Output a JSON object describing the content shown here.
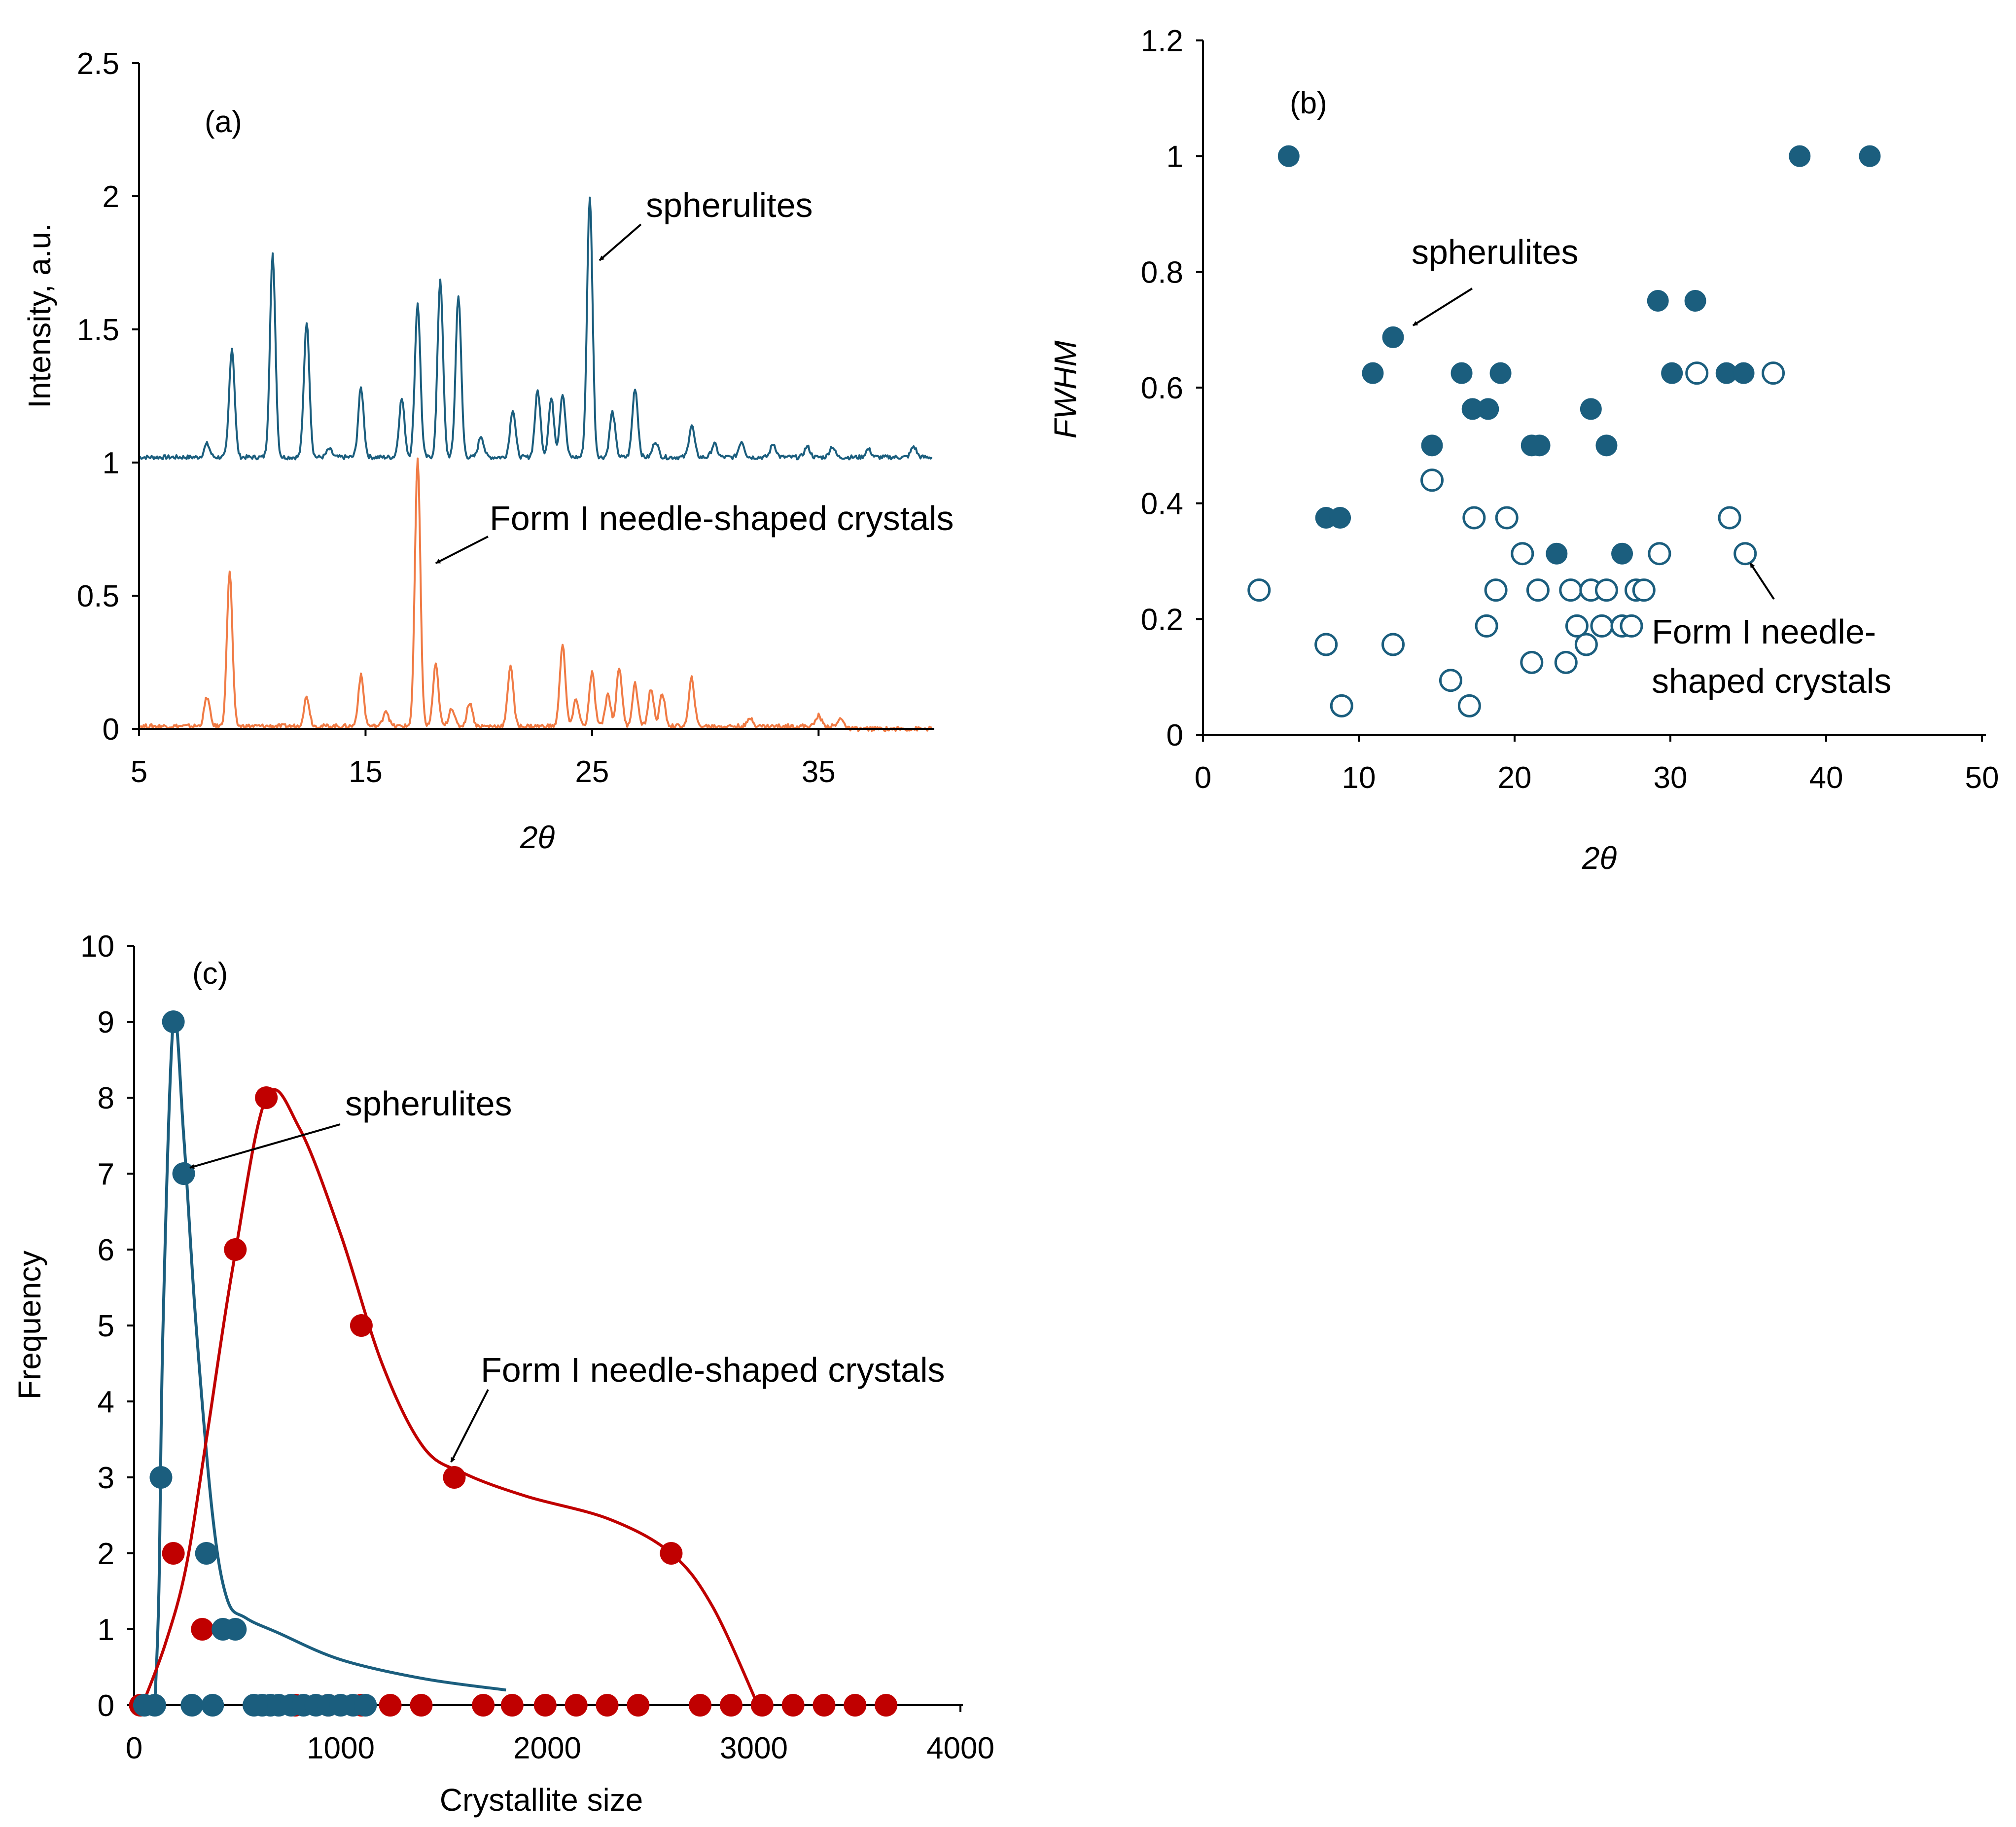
{
  "colors": {
    "blue": "#1b5e7e",
    "orange": "#f07b45",
    "red": "#c00000"
  },
  "chart_data": [
    {
      "panel": "(a)",
      "type": "line",
      "xlabel": "2θ",
      "ylabel": "Intensity, a.u.",
      "xlim": [
        5,
        40
      ],
      "ylim": [
        0,
        2.5
      ],
      "xticks": [
        "5",
        "15",
        "25",
        "35"
      ],
      "yticks": [
        "0",
        "0.5",
        "1",
        "1.5",
        "2",
        "2.5"
      ],
      "annotations": [
        "spherulites",
        "Form I needle-shaped crystals"
      ],
      "series": [
        {
          "name": "spherulites",
          "baseline": 1.02,
          "peaks": [
            [
              8.0,
              0.05
            ],
            [
              9.1,
              0.41
            ],
            [
              10.9,
              0.76
            ],
            [
              12.4,
              0.51
            ],
            [
              13.4,
              0.03
            ],
            [
              14.8,
              0.26
            ],
            [
              16.6,
              0.22
            ],
            [
              17.3,
              0.58
            ],
            [
              18.3,
              0.67
            ],
            [
              19.1,
              0.61
            ],
            [
              20.1,
              0.08
            ],
            [
              21.5,
              0.18
            ],
            [
              22.6,
              0.25
            ],
            [
              23.2,
              0.22
            ],
            [
              23.7,
              0.24
            ],
            [
              24.9,
              0.98
            ],
            [
              25.9,
              0.17
            ],
            [
              26.9,
              0.26
            ],
            [
              27.8,
              0.06
            ],
            [
              29.4,
              0.12
            ],
            [
              30.4,
              0.05
            ],
            [
              31.6,
              0.06
            ],
            [
              33.0,
              0.05
            ],
            [
              34.5,
              0.04
            ],
            [
              35.6,
              0.04
            ],
            [
              37.2,
              0.03
            ],
            [
              39.2,
              0.04
            ]
          ]
        },
        {
          "name": "Form I needle-shaped crystals",
          "baseline": 0.01,
          "peaks": [
            [
              8.0,
              0.11
            ],
            [
              9.0,
              0.58
            ],
            [
              12.4,
              0.11
            ],
            [
              14.8,
              0.19
            ],
            [
              15.9,
              0.06
            ],
            [
              17.3,
              1.0
            ],
            [
              18.1,
              0.23
            ],
            [
              18.8,
              0.07
            ],
            [
              19.6,
              0.09
            ],
            [
              21.4,
              0.23
            ],
            [
              23.7,
              0.31
            ],
            [
              24.3,
              0.1
            ],
            [
              25.0,
              0.2
            ],
            [
              25.7,
              0.12
            ],
            [
              26.2,
              0.22
            ],
            [
              26.9,
              0.16
            ],
            [
              27.6,
              0.14
            ],
            [
              28.1,
              0.12
            ],
            [
              29.4,
              0.18
            ],
            [
              32.0,
              0.03
            ],
            [
              35.0,
              0.04
            ],
            [
              36.0,
              0.03
            ]
          ]
        }
      ]
    },
    {
      "panel": "(b)",
      "type": "scatter",
      "xlabel": "2θ",
      "ylabel": "FWHM",
      "xlim": [
        0,
        50
      ],
      "ylim": [
        0,
        1.2
      ],
      "xticks": [
        "0",
        "10",
        "20",
        "30",
        "40",
        "50"
      ],
      "yticks": [
        "0",
        "0.2",
        "0.4",
        "0.6",
        "0.8",
        "1",
        "1.2"
      ],
      "annotations": [
        "spherulites",
        "Form I needle-",
        "shaped crystals"
      ],
      "series": [
        {
          "name": "spherulites",
          "marker": "filled",
          "points": [
            [
              5.5,
              1.0
            ],
            [
              12.2,
              0.687
            ],
            [
              10.9,
              0.625
            ],
            [
              16.6,
              0.625
            ],
            [
              19.1,
              0.625
            ],
            [
              17.3,
              0.563
            ],
            [
              18.3,
              0.563
            ],
            [
              24.9,
              0.563
            ],
            [
              14.7,
              0.5
            ],
            [
              21.1,
              0.5
            ],
            [
              21.6,
              0.5
            ],
            [
              25.9,
              0.5
            ],
            [
              7.9,
              0.375
            ],
            [
              8.8,
              0.375
            ],
            [
              22.7,
              0.313
            ],
            [
              26.9,
              0.313
            ],
            [
              29.2,
              0.75
            ],
            [
              31.6,
              0.75
            ],
            [
              30.1,
              0.625
            ],
            [
              33.6,
              0.625
            ],
            [
              34.7,
              0.625
            ],
            [
              38.3,
              1.0
            ],
            [
              42.8,
              1.0
            ]
          ]
        },
        {
          "name": "Form I needle-shaped crystals",
          "marker": "open",
          "points": [
            [
              3.6,
              0.25
            ],
            [
              7.9,
              0.156
            ],
            [
              8.9,
              0.05
            ],
            [
              12.2,
              0.156
            ],
            [
              14.7,
              0.44
            ],
            [
              15.9,
              0.094
            ],
            [
              17.1,
              0.05
            ],
            [
              17.4,
              0.375
            ],
            [
              18.2,
              0.188
            ],
            [
              18.8,
              0.25
            ],
            [
              19.5,
              0.375
            ],
            [
              20.5,
              0.313
            ],
            [
              21.1,
              0.125
            ],
            [
              21.5,
              0.25
            ],
            [
              23.3,
              0.125
            ],
            [
              23.6,
              0.25
            ],
            [
              24.0,
              0.188
            ],
            [
              24.6,
              0.156
            ],
            [
              24.9,
              0.25
            ],
            [
              25.6,
              0.188
            ],
            [
              25.9,
              0.25
            ],
            [
              26.9,
              0.188
            ],
            [
              27.5,
              0.188
            ],
            [
              27.8,
              0.25
            ],
            [
              28.3,
              0.25
            ],
            [
              29.3,
              0.313
            ],
            [
              31.7,
              0.625
            ],
            [
              33.8,
              0.375
            ],
            [
              34.8,
              0.313
            ],
            [
              36.6,
              0.625
            ]
          ]
        }
      ]
    },
    {
      "panel": "(c)",
      "type": "scatter",
      "xlabel": "Crystallite size",
      "ylabel": "Frequency",
      "xlim": [
        0,
        4000
      ],
      "ylim": [
        0,
        10
      ],
      "xticks": [
        "0",
        "1000",
        "2000",
        "3000",
        "4000"
      ],
      "yticks": [
        "0",
        "1",
        "2",
        "3",
        "4",
        "5",
        "6",
        "7",
        "8",
        "9",
        "10"
      ],
      "annotations": [
        "spherulites",
        "Form I needle-shaped crystals"
      ],
      "series": [
        {
          "name": "spherulites",
          "points": [
            [
              50,
              0
            ],
            [
              100,
              0
            ],
            [
              130,
              3
            ],
            [
              190,
              9
            ],
            [
              240,
              7
            ],
            [
              280,
              0
            ],
            [
              350,
              2
            ],
            [
              380,
              0
            ],
            [
              430,
              1
            ],
            [
              490,
              1
            ],
            [
              580,
              0
            ],
            [
              620,
              0
            ],
            [
              660,
              0
            ],
            [
              700,
              0
            ],
            [
              760,
              0
            ],
            [
              820,
              0
            ],
            [
              880,
              0
            ],
            [
              940,
              0
            ],
            [
              1000,
              0
            ],
            [
              1060,
              0
            ],
            [
              1120,
              0
            ]
          ],
          "curve": [
            [
              100,
              0
            ],
            [
              120,
              1.5
            ],
            [
              140,
              5
            ],
            [
              190,
              9
            ],
            [
              240,
              7.5
            ],
            [
              300,
              5
            ],
            [
              380,
              2.5
            ],
            [
              450,
              1.4
            ],
            [
              540,
              1.15
            ],
            [
              700,
              0.95
            ],
            [
              1000,
              0.6
            ],
            [
              1400,
              0.35
            ],
            [
              1800,
              0.2
            ]
          ]
        },
        {
          "name": "Form I needle-shaped crystals",
          "points": [
            [
              30,
              0
            ],
            [
              190,
              2
            ],
            [
              330,
              1
            ],
            [
              490,
              6
            ],
            [
              640,
              8
            ],
            [
              1100,
              5
            ],
            [
              1550,
              3
            ],
            [
              2600,
              2
            ],
            [
              780,
              0
            ],
            [
              940,
              0
            ],
            [
              1100,
              0
            ],
            [
              1240,
              0
            ],
            [
              1390,
              0
            ],
            [
              1690,
              0
            ],
            [
              1830,
              0
            ],
            [
              1990,
              0
            ],
            [
              2140,
              0
            ],
            [
              2290,
              0
            ],
            [
              2440,
              0
            ],
            [
              2740,
              0
            ],
            [
              2890,
              0
            ],
            [
              3040,
              0
            ],
            [
              3190,
              0
            ],
            [
              3340,
              0
            ],
            [
              3490,
              0
            ],
            [
              3640,
              0
            ]
          ],
          "curve": [
            [
              40,
              0
            ],
            [
              150,
              0.8
            ],
            [
              250,
              1.8
            ],
            [
              350,
              3.5
            ],
            [
              480,
              5.8
            ],
            [
              640,
              8
            ],
            [
              800,
              7.6
            ],
            [
              1000,
              6.2
            ],
            [
              1200,
              4.5
            ],
            [
              1400,
              3.4
            ],
            [
              1600,
              3.05
            ],
            [
              1900,
              2.75
            ],
            [
              2300,
              2.45
            ],
            [
              2600,
              2.0
            ],
            [
              2800,
              1.3
            ],
            [
              3020,
              0
            ]
          ]
        }
      ]
    }
  ]
}
